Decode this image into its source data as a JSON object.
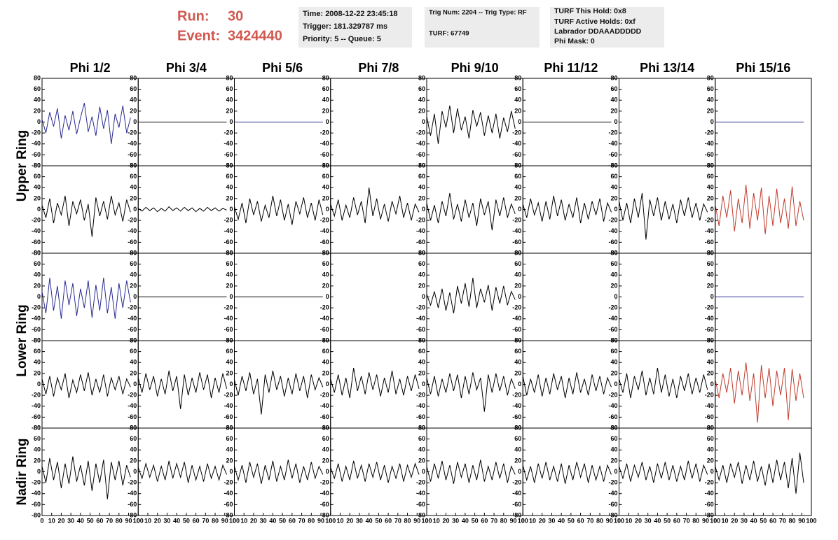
{
  "header": {
    "run_label": "Run:",
    "run": "30",
    "event_label": "Event:",
    "event": "3424440"
  },
  "info": [
    [
      "Time: 2008-12-22 23:45:18",
      "Trigger: 181.329787 ms",
      "Priority: 5 -- Queue: 5"
    ],
    [
      "Trig Num: 2204 -- Trig Type: RF",
      "TURF: 67749"
    ],
    [
      "TURF This Hold: 0x8",
      "TURF Active Holds: 0xf",
      "Labrador DDAAADDDDD",
      "Phi Mask: 0"
    ]
  ],
  "chart_data": {
    "type": "line",
    "columns": [
      "Phi 1/2",
      "Phi 3/4",
      "Phi 5/6",
      "Phi 7/8",
      "Phi 9/10",
      "Phi 11/12",
      "Phi 13/14",
      "Phi 15/16"
    ],
    "ring_labels": [
      "Upper Ring",
      "Lower Ring",
      "Nadir Ring"
    ],
    "x": [
      0,
      4,
      8,
      12,
      16,
      20,
      24,
      28,
      32,
      36,
      40,
      44,
      48,
      52,
      56,
      60,
      64,
      68,
      72,
      76,
      80,
      84,
      88,
      92
    ],
    "xlim": [
      0,
      100
    ],
    "xticks": [
      0,
      10,
      20,
      30,
      40,
      50,
      60,
      70,
      80,
      90,
      100
    ],
    "ylim": [
      -80,
      80
    ],
    "yticks": [
      -80,
      -60,
      -40,
      -20,
      0,
      20,
      40,
      60,
      80
    ],
    "panels": [
      [
        {
          "color": "#2a2a8f",
          "values": [
            5,
            -20,
            18,
            -8,
            25,
            -30,
            12,
            -15,
            20,
            -22,
            8,
            35,
            -18,
            10,
            -25,
            28,
            -12,
            22,
            -40,
            15,
            -10,
            30,
            -20,
            8
          ]
        },
        {
          "color": "#000000",
          "values": [
            0,
            0,
            0,
            0,
            0,
            0,
            0,
            0,
            0,
            0,
            0,
            0,
            0,
            0,
            0,
            0,
            0,
            0,
            0,
            0,
            0,
            0,
            0,
            0
          ]
        },
        {
          "color": "#2a2a8f",
          "values": [
            0,
            0,
            0,
            0,
            0,
            0,
            0,
            0,
            0,
            0,
            0,
            0,
            0,
            0,
            0,
            0,
            0,
            0,
            0,
            0,
            0,
            0,
            0,
            0
          ]
        },
        null,
        {
          "color": "#000000",
          "values": [
            10,
            -25,
            15,
            -40,
            20,
            -10,
            30,
            -20,
            25,
            -15,
            10,
            -30,
            22,
            -8,
            18,
            -25,
            12,
            -20,
            15,
            -30,
            8,
            -18,
            20,
            -12
          ]
        },
        {
          "color": "#000000",
          "values": [
            0,
            0,
            0,
            0,
            0,
            0,
            0,
            0,
            0,
            0,
            0,
            0,
            0,
            0,
            0,
            0,
            0,
            0,
            0,
            0,
            0,
            0,
            0,
            0
          ]
        },
        null,
        {
          "color": "#2a2a8f",
          "values": [
            0,
            0,
            0,
            0,
            0,
            0,
            0,
            0,
            0,
            0,
            0,
            0,
            0,
            0,
            0,
            0,
            0,
            0,
            0,
            0,
            0,
            0,
            0,
            0
          ]
        }
      ],
      [
        {
          "color": "#000000",
          "values": [
            8,
            -15,
            20,
            -25,
            12,
            -10,
            25,
            -30,
            15,
            -8,
            18,
            -20,
            10,
            -50,
            22,
            -12,
            15,
            -18,
            25,
            -10,
            12,
            -22,
            18,
            -5
          ]
        },
        {
          "color": "#000000",
          "values": [
            2,
            -3,
            4,
            -2,
            3,
            -4,
            2,
            -3,
            5,
            -2,
            3,
            -3,
            4,
            -2,
            3,
            -4,
            2,
            -3,
            4,
            -2,
            3,
            -3,
            2,
            -1
          ]
        },
        {
          "color": "#000000",
          "values": [
            5,
            -18,
            12,
            -25,
            20,
            -10,
            15,
            -22,
            8,
            -15,
            25,
            -12,
            18,
            -20,
            10,
            -28,
            15,
            -8,
            22,
            -15,
            12,
            -20,
            18,
            -10
          ]
        },
        {
          "color": "#000000",
          "values": [
            10,
            -12,
            18,
            -20,
            8,
            -15,
            22,
            -10,
            15,
            -25,
            40,
            -12,
            20,
            -18,
            10,
            -22,
            15,
            -8,
            25,
            -15,
            12,
            -20,
            10,
            -5
          ]
        },
        {
          "color": "#000000",
          "values": [
            12,
            -20,
            8,
            -25,
            15,
            -12,
            30,
            -18,
            10,
            -22,
            18,
            -15,
            12,
            -30,
            20,
            -10,
            15,
            -38,
            18,
            -12,
            22,
            -15,
            10,
            -8
          ]
        },
        {
          "color": "#000000",
          "values": [
            10,
            -15,
            20,
            -10,
            12,
            -22,
            15,
            -18,
            25,
            -12,
            18,
            -20,
            10,
            -15,
            22,
            -25,
            12,
            -18,
            15,
            -10,
            20,
            -22,
            12,
            -5
          ]
        },
        {
          "color": "#000000",
          "values": [
            15,
            -20,
            12,
            -25,
            20,
            -15,
            30,
            -55,
            18,
            -12,
            22,
            -20,
            15,
            -18,
            10,
            -25,
            18,
            -12,
            22,
            -15,
            12,
            -20,
            10,
            -5
          ]
        },
        {
          "color": "#c0392b",
          "values": [
            10,
            -30,
            25,
            -15,
            35,
            -40,
            20,
            -25,
            45,
            -35,
            30,
            -20,
            40,
            -45,
            25,
            -30,
            38,
            -25,
            20,
            -35,
            42,
            -30,
            15,
            -20
          ]
        }
      ],
      [
        {
          "color": "#2a2a8f",
          "values": [
            10,
            -30,
            35,
            -25,
            20,
            -40,
            30,
            -15,
            25,
            -35,
            15,
            -20,
            30,
            -38,
            22,
            -25,
            35,
            -30,
            18,
            -40,
            25,
            -20,
            30,
            -10
          ]
        },
        {
          "color": "#000000",
          "values": [
            0,
            0,
            0,
            0,
            0,
            0,
            0,
            0,
            0,
            0,
            0,
            0,
            0,
            0,
            0,
            0,
            0,
            0,
            0,
            0,
            0,
            0,
            0,
            0
          ]
        },
        {
          "color": "#000000",
          "values": [
            0,
            0,
            0,
            0,
            0,
            0,
            0,
            0,
            0,
            0,
            0,
            0,
            0,
            0,
            0,
            0,
            0,
            0,
            0,
            0,
            0,
            0,
            0,
            0
          ]
        },
        null,
        {
          "color": "#000000",
          "values": [
            5,
            -15,
            10,
            -20,
            15,
            -25,
            8,
            -30,
            20,
            -12,
            25,
            -18,
            35,
            -20,
            15,
            -10,
            22,
            -25,
            18,
            -12,
            20,
            -15,
            10,
            -5
          ]
        },
        null,
        null,
        {
          "color": "#2a2a8f",
          "values": [
            0,
            0,
            0,
            0,
            0,
            0,
            0,
            0,
            0,
            0,
            0,
            0,
            0,
            0,
            0,
            0,
            0,
            0,
            0,
            0,
            0,
            0,
            0,
            0
          ]
        }
      ],
      [
        {
          "color": "#000000",
          "values": [
            10,
            -18,
            15,
            -22,
            12,
            -10,
            20,
            -25,
            8,
            -15,
            18,
            -12,
            22,
            -20,
            10,
            -15,
            18,
            -22,
            12,
            -10,
            15,
            -18,
            10,
            -5
          ]
        },
        {
          "color": "#000000",
          "values": [
            12,
            -15,
            20,
            -10,
            15,
            -22,
            10,
            -18,
            25,
            -12,
            15,
            -45,
            18,
            -20,
            12,
            -15,
            22,
            -10,
            18,
            -25,
            12,
            -15,
            20,
            -8
          ]
        },
        {
          "color": "#000000",
          "values": [
            8,
            -20,
            15,
            -12,
            22,
            -18,
            10,
            -55,
            18,
            -15,
            25,
            -10,
            15,
            -22,
            12,
            -18,
            20,
            -12,
            15,
            -25,
            18,
            -10,
            12,
            -5
          ]
        },
        {
          "color": "#000000",
          "values": [
            10,
            -15,
            18,
            -20,
            12,
            -25,
            30,
            -12,
            15,
            -18,
            22,
            -10,
            18,
            -22,
            12,
            -15,
            25,
            -18,
            10,
            -20,
            15,
            -12,
            18,
            -8
          ]
        },
        {
          "color": "#000000",
          "values": [
            12,
            -18,
            15,
            -22,
            10,
            -15,
            20,
            -12,
            18,
            -25,
            15,
            -18,
            22,
            -10,
            12,
            -50,
            18,
            -15,
            20,
            -12,
            15,
            -20,
            10,
            -8
          ]
        },
        {
          "color": "#000000",
          "values": [
            15,
            -20,
            10,
            -15,
            18,
            -22,
            12,
            -18,
            20,
            -10,
            15,
            -25,
            12,
            -18,
            22,
            -15,
            10,
            -20,
            18,
            -12,
            15,
            -18,
            12,
            -5
          ]
        },
        {
          "color": "#000000",
          "values": [
            10,
            -15,
            20,
            -25,
            15,
            -10,
            25,
            -20,
            12,
            -18,
            30,
            -15,
            18,
            -22,
            10,
            -25,
            15,
            -12,
            20,
            -18,
            12,
            -15,
            18,
            -10
          ]
        },
        {
          "color": "#c0392b",
          "values": [
            10,
            -25,
            20,
            -15,
            30,
            -35,
            25,
            -20,
            40,
            -30,
            20,
            -70,
            35,
            -25,
            30,
            -40,
            25,
            -20,
            30,
            -65,
            28,
            -30,
            20,
            -25
          ]
        }
      ],
      [
        {
          "color": "#000000",
          "values": [
            10,
            -20,
            25,
            -15,
            18,
            -30,
            15,
            -22,
            28,
            -18,
            12,
            -25,
            20,
            -35,
            15,
            -20,
            22,
            -50,
            18,
            -15,
            20,
            -25,
            12,
            -10
          ]
        },
        {
          "color": "#000000",
          "values": [
            8,
            -12,
            15,
            -10,
            12,
            -18,
            10,
            -15,
            20,
            -12,
            15,
            -10,
            18,
            -20,
            12,
            -15,
            10,
            -18,
            15,
            -12,
            10,
            -15,
            12,
            -5
          ]
        },
        {
          "color": "#000000",
          "values": [
            10,
            -15,
            12,
            -20,
            18,
            -10,
            15,
            -22,
            12,
            -15,
            20,
            -18,
            10,
            -15,
            22,
            -12,
            15,
            -20,
            10,
            -15,
            18,
            -12,
            10,
            -5
          ]
        },
        {
          "color": "#000000",
          "values": [
            8,
            -12,
            15,
            -18,
            10,
            -15,
            20,
            -12,
            12,
            -18,
            15,
            -10,
            18,
            -15,
            12,
            -20,
            10,
            -12,
            15,
            -18,
            12,
            -10,
            15,
            -5
          ]
        },
        {
          "color": "#000000",
          "values": [
            10,
            -18,
            15,
            -12,
            20,
            -15,
            12,
            -22,
            18,
            -10,
            15,
            -20,
            12,
            -15,
            22,
            -18,
            10,
            -15,
            18,
            -12,
            15,
            -20,
            10,
            -5
          ]
        },
        {
          "color": "#000000",
          "values": [
            12,
            -15,
            10,
            -20,
            15,
            -12,
            18,
            -15,
            10,
            -18,
            15,
            -22,
            12,
            -15,
            18,
            -10,
            15,
            -20,
            12,
            -15,
            10,
            -18,
            12,
            -5
          ]
        },
        {
          "color": "#000000",
          "values": [
            10,
            -12,
            15,
            -18,
            12,
            -10,
            18,
            -15,
            10,
            -20,
            15,
            -12,
            18,
            -15,
            12,
            -18,
            10,
            -15,
            20,
            -12,
            15,
            -18,
            12,
            -5
          ]
        },
        {
          "color": "#000000",
          "values": [
            10,
            -15,
            12,
            -20,
            15,
            -10,
            18,
            -22,
            12,
            -15,
            20,
            -18,
            10,
            -25,
            15,
            -20,
            22,
            -15,
            18,
            -30,
            25,
            -40,
            35,
            -20
          ]
        }
      ]
    ]
  }
}
